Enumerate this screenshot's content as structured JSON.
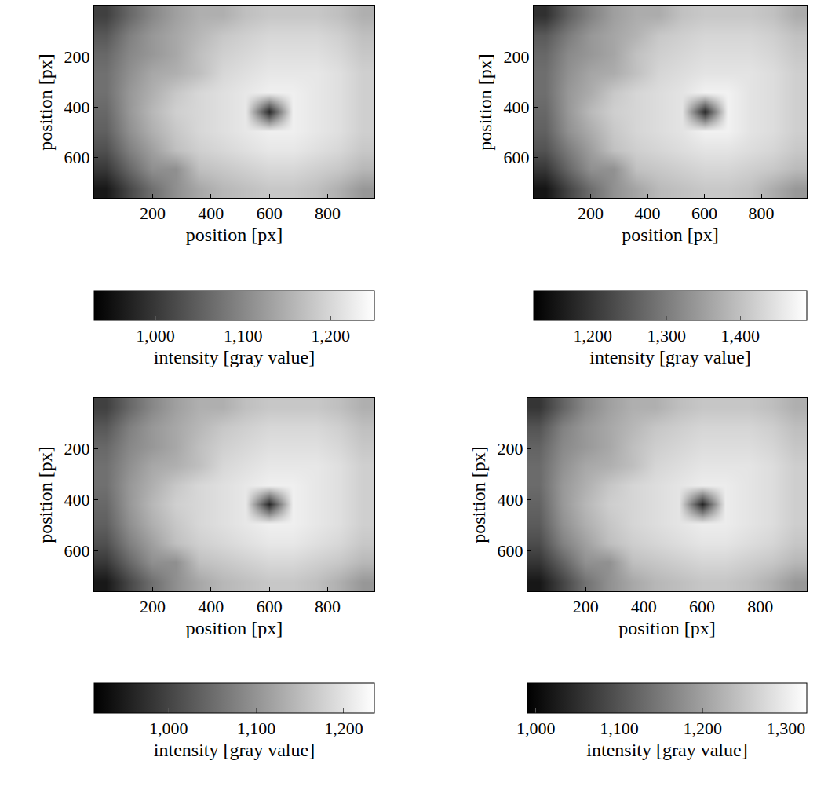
{
  "chart_data": [
    {
      "type": "heatmap",
      "x_label": "position [px]",
      "y_label": "position [px]",
      "x": [
        40,
        120,
        200,
        280,
        360,
        440,
        520,
        600,
        680,
        760,
        840,
        920
      ],
      "y": [
        38,
        114,
        190,
        266,
        342,
        418,
        494,
        570,
        646,
        722
      ],
      "xlim": [
        0,
        960
      ],
      "ylim": [
        760,
        0
      ],
      "xticks": [
        200,
        400,
        600,
        800
      ],
      "yticks": [
        200,
        400,
        600
      ],
      "cells": [
        [
          1010,
          1060,
          1100,
          1130,
          1150,
          1150,
          1170,
          1180,
          1180,
          1180,
          1170,
          1150
        ],
        [
          1040,
          1090,
          1120,
          1140,
          1160,
          1180,
          1190,
          1200,
          1200,
          1200,
          1190,
          1170
        ],
        [
          1060,
          1100,
          1120,
          1140,
          1170,
          1190,
          1200,
          1210,
          1210,
          1210,
          1200,
          1180
        ],
        [
          1070,
          1110,
          1140,
          1150,
          1170,
          1200,
          1210,
          1220,
          1220,
          1220,
          1210,
          1190
        ],
        [
          1070,
          1120,
          1150,
          1180,
          1200,
          1210,
          1220,
          1230,
          1230,
          1220,
          1210,
          1190
        ],
        [
          1060,
          1120,
          1160,
          1190,
          1200,
          1210,
          1220,
          980,
          1230,
          1220,
          1210,
          1190
        ],
        [
          1050,
          1110,
          1150,
          1180,
          1200,
          1210,
          1220,
          1230,
          1230,
          1220,
          1210,
          1190
        ],
        [
          1030,
          1090,
          1130,
          1170,
          1190,
          1200,
          1210,
          1220,
          1220,
          1210,
          1200,
          1180
        ],
        [
          1000,
          1060,
          1110,
          1110,
          1170,
          1180,
          1190,
          1200,
          1200,
          1190,
          1180,
          1160
        ],
        [
          960,
          1020,
          1070,
          1110,
          1140,
          1160,
          1170,
          1180,
          1180,
          1170,
          1150,
          1120
        ]
      ],
      "colorbar": {
        "label": "intensity [gray value]",
        "range": [
          930,
          1250
        ],
        "ticks": [
          {
            "value": 1000,
            "label": "1,000"
          },
          {
            "value": 1100,
            "label": "1,100"
          },
          {
            "value": 1200,
            "label": "1,200"
          }
        ]
      }
    },
    {
      "type": "heatmap",
      "x_label": "position [px]",
      "y_label": "position [px]",
      "x": [
        40,
        120,
        200,
        280,
        360,
        440,
        520,
        600,
        680,
        760,
        840,
        920
      ],
      "y": [
        38,
        114,
        190,
        266,
        342,
        418,
        494,
        570,
        646,
        722
      ],
      "xlim": [
        0,
        960
      ],
      "ylim": [
        760,
        0
      ],
      "xticks": [
        200,
        400,
        600,
        800
      ],
      "yticks": [
        200,
        400,
        600
      ],
      "cells": [
        [
          1190,
          1260,
          1310,
          1350,
          1370,
          1370,
          1400,
          1410,
          1410,
          1410,
          1400,
          1370
        ],
        [
          1250,
          1300,
          1340,
          1360,
          1380,
          1410,
          1420,
          1430,
          1430,
          1430,
          1420,
          1400
        ],
        [
          1270,
          1320,
          1340,
          1360,
          1400,
          1420,
          1430,
          1440,
          1440,
          1440,
          1430,
          1410
        ],
        [
          1280,
          1330,
          1360,
          1370,
          1400,
          1430,
          1440,
          1450,
          1450,
          1450,
          1440,
          1420
        ],
        [
          1280,
          1340,
          1370,
          1410,
          1430,
          1440,
          1450,
          1470,
          1470,
          1450,
          1440,
          1420
        ],
        [
          1270,
          1340,
          1390,
          1420,
          1430,
          1440,
          1450,
          1180,
          1470,
          1450,
          1440,
          1420
        ],
        [
          1260,
          1330,
          1370,
          1410,
          1430,
          1440,
          1450,
          1470,
          1470,
          1450,
          1440,
          1420
        ],
        [
          1240,
          1300,
          1350,
          1400,
          1420,
          1430,
          1440,
          1450,
          1450,
          1440,
          1430,
          1410
        ],
        [
          1200,
          1270,
          1330,
          1330,
          1400,
          1410,
          1420,
          1430,
          1430,
          1420,
          1410,
          1390
        ],
        [
          1150,
          1220,
          1280,
          1330,
          1360,
          1390,
          1400,
          1410,
          1410,
          1400,
          1370,
          1340
        ]
      ],
      "colorbar": {
        "label": "intensity [gray value]",
        "range": [
          1120,
          1490
        ],
        "ticks": [
          {
            "value": 1200,
            "label": "1,200"
          },
          {
            "value": 1300,
            "label": "1,300"
          },
          {
            "value": 1400,
            "label": "1,400"
          }
        ]
      }
    },
    {
      "type": "heatmap",
      "x_label": "position [px]",
      "y_label": "position [px]",
      "x": [
        40,
        120,
        200,
        280,
        360,
        440,
        520,
        600,
        680,
        760,
        840,
        920
      ],
      "y": [
        38,
        114,
        190,
        266,
        342,
        418,
        494,
        570,
        646,
        722
      ],
      "xlim": [
        0,
        960
      ],
      "ylim": [
        760,
        0
      ],
      "xticks": [
        200,
        400,
        600,
        800
      ],
      "yticks": [
        200,
        400,
        600
      ],
      "cells": [
        [
          995,
          1045,
          1085,
          1115,
          1135,
          1135,
          1155,
          1165,
          1165,
          1165,
          1155,
          1135
        ],
        [
          1025,
          1075,
          1105,
          1125,
          1145,
          1165,
          1175,
          1185,
          1185,
          1185,
          1175,
          1155
        ],
        [
          1045,
          1085,
          1105,
          1125,
          1155,
          1175,
          1185,
          1195,
          1195,
          1195,
          1185,
          1165
        ],
        [
          1055,
          1095,
          1125,
          1135,
          1155,
          1185,
          1195,
          1205,
          1205,
          1205,
          1195,
          1175
        ],
        [
          1055,
          1105,
          1135,
          1165,
          1185,
          1195,
          1205,
          1215,
          1215,
          1205,
          1195,
          1175
        ],
        [
          1045,
          1105,
          1145,
          1175,
          1185,
          1195,
          1205,
          965,
          1215,
          1205,
          1195,
          1175
        ],
        [
          1035,
          1095,
          1135,
          1165,
          1185,
          1195,
          1205,
          1215,
          1215,
          1205,
          1195,
          1175
        ],
        [
          1015,
          1075,
          1115,
          1155,
          1175,
          1185,
          1195,
          1205,
          1205,
          1195,
          1185,
          1165
        ],
        [
          985,
          1045,
          1095,
          1095,
          1155,
          1165,
          1175,
          1185,
          1185,
          1175,
          1165,
          1145
        ],
        [
          945,
          1005,
          1055,
          1095,
          1125,
          1145,
          1155,
          1165,
          1165,
          1155,
          1135,
          1105
        ]
      ],
      "colorbar": {
        "label": "intensity [gray value]",
        "range": [
          915,
          1235
        ],
        "ticks": [
          {
            "value": 1000,
            "label": "1,000"
          },
          {
            "value": 1100,
            "label": "1,100"
          },
          {
            "value": 1200,
            "label": "1,200"
          }
        ]
      }
    },
    {
      "type": "heatmap",
      "x_label": "position [px]",
      "y_label": "position [px]",
      "x": [
        40,
        120,
        200,
        280,
        360,
        440,
        520,
        600,
        680,
        760,
        840,
        920
      ],
      "y": [
        38,
        114,
        190,
        266,
        342,
        418,
        494,
        570,
        646,
        722
      ],
      "xlim": [
        0,
        960
      ],
      "ylim": [
        760,
        0
      ],
      "xticks": [
        200,
        400,
        600,
        800
      ],
      "yticks": [
        200,
        400,
        600
      ],
      "cells": [
        [
          1060,
          1120,
          1170,
          1200,
          1220,
          1220,
          1240,
          1250,
          1250,
          1250,
          1240,
          1220
        ],
        [
          1100,
          1160,
          1190,
          1210,
          1230,
          1250,
          1260,
          1270,
          1270,
          1270,
          1260,
          1240
        ],
        [
          1120,
          1170,
          1190,
          1210,
          1240,
          1260,
          1270,
          1280,
          1280,
          1280,
          1270,
          1250
        ],
        [
          1130,
          1180,
          1210,
          1220,
          1240,
          1270,
          1280,
          1290,
          1290,
          1290,
          1280,
          1260
        ],
        [
          1130,
          1190,
          1220,
          1250,
          1270,
          1280,
          1290,
          1300,
          1300,
          1290,
          1280,
          1260
        ],
        [
          1120,
          1190,
          1230,
          1260,
          1270,
          1280,
          1290,
          1040,
          1300,
          1290,
          1280,
          1260
        ],
        [
          1110,
          1180,
          1220,
          1250,
          1270,
          1280,
          1290,
          1300,
          1300,
          1290,
          1280,
          1260
        ],
        [
          1090,
          1160,
          1200,
          1240,
          1260,
          1270,
          1280,
          1290,
          1290,
          1280,
          1270,
          1250
        ],
        [
          1060,
          1120,
          1180,
          1180,
          1240,
          1250,
          1260,
          1270,
          1270,
          1260,
          1250,
          1230
        ],
        [
          1020,
          1080,
          1140,
          1180,
          1210,
          1230,
          1240,
          1250,
          1250,
          1240,
          1220,
          1190
        ]
      ],
      "colorbar": {
        "label": "intensity [gray value]",
        "range": [
          990,
          1325
        ],
        "ticks": [
          {
            "value": 1000,
            "label": "1,000"
          },
          {
            "value": 1100,
            "label": "1,100"
          },
          {
            "value": 1200,
            "label": "1,200"
          },
          {
            "value": 1300,
            "label": "1,300"
          }
        ]
      }
    }
  ]
}
